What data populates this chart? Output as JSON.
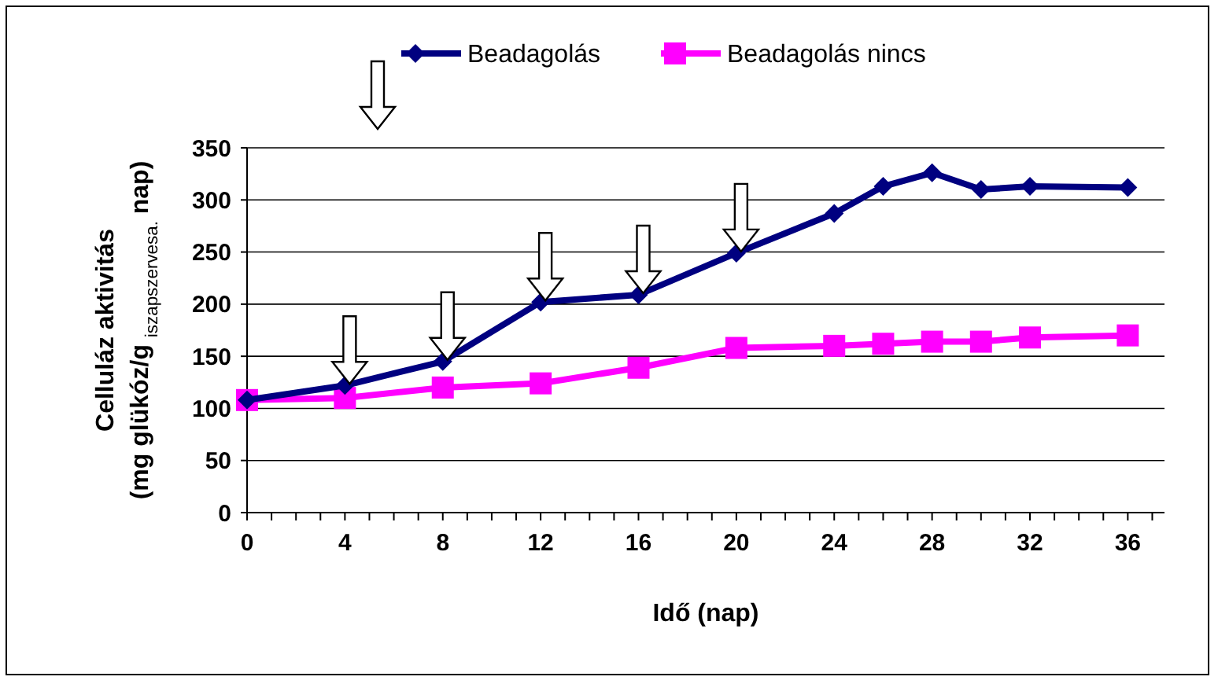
{
  "chart_data": {
    "type": "line",
    "xlabel": "Idő (nap)",
    "ylabel": "Celluláz aktivitás\n(mg glükóz/g $_{iszapszervesa.}$ nap)",
    "x": [
      0,
      4,
      8,
      12,
      16,
      20,
      24,
      26,
      28,
      30,
      32,
      36
    ],
    "series": [
      {
        "name": "Beadagolás",
        "color": "#000080",
        "marker": "diamond",
        "values": [
          108,
          122,
          145,
          202,
          209,
          249,
          287,
          313,
          326,
          310,
          313,
          312
        ]
      },
      {
        "name": "Beadagolás nincs",
        "color": "#ff00ff",
        "marker": "square",
        "values": [
          108,
          110,
          120,
          124,
          139,
          158,
          160,
          162,
          164,
          164,
          168,
          170
        ]
      }
    ],
    "xlim": [
      0,
      37.5
    ],
    "xticks": [
      0,
      {
        "value": 1,
        "label": null
      },
      {
        "value": 2,
        "label": null
      },
      {
        "value": 3,
        "label": null
      },
      4,
      {
        "value": 5,
        "label": null
      },
      {
        "value": 6,
        "label": null
      },
      {
        "value": 7,
        "label": null
      },
      8,
      {
        "value": 9,
        "label": null
      },
      {
        "value": 10,
        "label": null
      },
      {
        "value": 11,
        "label": null
      },
      12,
      {
        "value": 13,
        "label": null
      },
      {
        "value": 14,
        "label": null
      },
      {
        "value": 15,
        "label": null
      },
      16,
      {
        "value": 17,
        "label": null
      },
      {
        "value": 18,
        "label": null
      },
      {
        "value": 19,
        "label": null
      },
      20,
      {
        "value": 21,
        "label": null
      },
      {
        "value": 22,
        "label": null
      },
      {
        "value": 23,
        "label": null
      },
      24,
      {
        "value": 25,
        "label": null
      },
      {
        "value": 26,
        "label": null
      },
      {
        "value": 27,
        "label": null
      },
      28,
      {
        "value": 29,
        "label": null
      },
      {
        "value": 30,
        "label": null
      },
      {
        "value": 31,
        "label": null
      },
      32,
      {
        "value": 33,
        "label": null
      },
      {
        "value": 34,
        "label": null
      },
      {
        "value": 35,
        "label": null
      },
      36,
      {
        "value": 37,
        "label": null
      }
    ],
    "ylim": [
      0,
      350
    ],
    "yticks": [
      0,
      50,
      100,
      150,
      200,
      250,
      300,
      350
    ],
    "grid": "y",
    "legend": "top",
    "line_style": "solid"
  }
}
